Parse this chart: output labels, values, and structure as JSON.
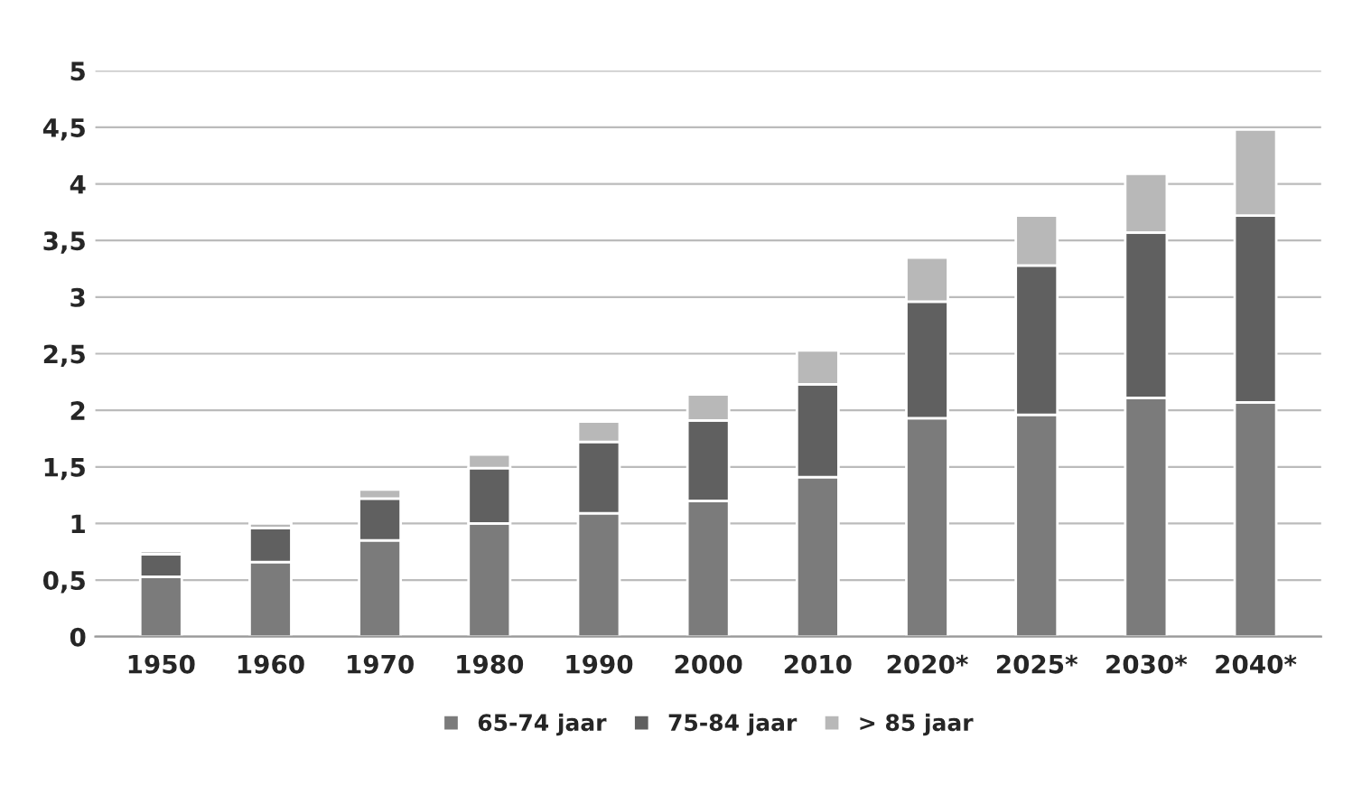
{
  "chart_data": {
    "type": "bar",
    "stacked": true,
    "categories": [
      "1950",
      "1960",
      "1970",
      "1980",
      "1990",
      "2000",
      "2010",
      "2020*",
      "2025*",
      "2030*",
      "2040*"
    ],
    "series": [
      {
        "name": "65-74 jaar",
        "color": "#7b7b7b",
        "values": [
          0.53,
          0.66,
          0.85,
          1.0,
          1.09,
          1.2,
          1.41,
          1.93,
          1.96,
          2.11,
          2.07
        ]
      },
      {
        "name": "75-84 jaar",
        "color": "#606060",
        "values": [
          0.2,
          0.3,
          0.37,
          0.49,
          0.63,
          0.71,
          0.82,
          1.03,
          1.32,
          1.46,
          1.65
        ]
      },
      {
        "name": "> 85 jaar",
        "color": "#b8b8b8",
        "values": [
          0.03,
          0.04,
          0.08,
          0.12,
          0.18,
          0.23,
          0.3,
          0.39,
          0.44,
          0.52,
          0.76
        ]
      }
    ],
    "ylim": [
      0,
      5
    ],
    "yticks": [
      0,
      {
        "value": 0.5,
        "label": "0,5"
      },
      1,
      {
        "value": 1.5,
        "label": "1,5"
      },
      2,
      {
        "value": 2.5,
        "label": "2,5"
      },
      3,
      {
        "value": 3.5,
        "label": "3,5"
      },
      4,
      {
        "value": 4.5,
        "label": "4,5"
      },
      5
    ],
    "grid": "y",
    "legend": "bottom"
  }
}
